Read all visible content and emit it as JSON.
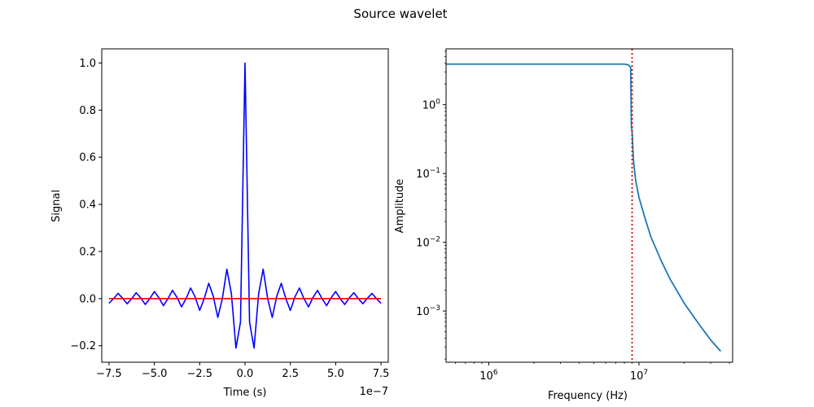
{
  "figure": {
    "title": "Source wavelet"
  },
  "chart_data": [
    {
      "type": "line",
      "title": "",
      "xlabel": "Time (s)",
      "ylabel": "Signal",
      "x_offset_label": "1e−7",
      "xlim": [
        -7.9,
        7.9
      ],
      "ylim": [
        -0.27,
        1.06
      ],
      "x_ticks": [
        -7.5,
        -5.0,
        -2.5,
        0.0,
        2.5,
        5.0,
        7.5
      ],
      "x_tick_labels": [
        "−7.5",
        "−5.0",
        "−2.5",
        "0.0",
        "2.5",
        "5.0",
        "7.5"
      ],
      "y_ticks": [
        -0.2,
        0.0,
        0.2,
        0.4,
        0.6,
        0.8,
        1.0
      ],
      "y_tick_labels": [
        "−0.2",
        "0.0",
        "0.2",
        "0.4",
        "0.6",
        "0.8",
        "1.0"
      ],
      "grid": false,
      "series": [
        {
          "color": "#0000ff",
          "x": [
            -7.5,
            -7.25,
            -7.0,
            -6.75,
            -6.5,
            -6.25,
            -6.0,
            -5.75,
            -5.5,
            -5.25,
            -5.0,
            -4.75,
            -4.5,
            -4.25,
            -4.0,
            -3.75,
            -3.5,
            -3.25,
            -3.0,
            -2.75,
            -2.5,
            -2.25,
            -2.0,
            -1.75,
            -1.5,
            -1.25,
            -1.0,
            -0.75,
            -0.5,
            -0.25,
            0.0,
            0.25,
            0.5,
            0.75,
            1.0,
            1.25,
            1.5,
            1.75,
            2.0,
            2.25,
            2.5,
            2.75,
            3.0,
            3.25,
            3.5,
            3.75,
            4.0,
            4.25,
            4.5,
            4.75,
            5.0,
            5.25,
            5.5,
            5.75,
            6.0,
            6.25,
            6.5,
            6.75,
            7.0,
            7.25,
            7.5
          ],
          "y": [
            -0.02,
            0.0,
            0.022,
            0.002,
            -0.022,
            0.0,
            0.025,
            0.003,
            -0.025,
            0.0,
            0.03,
            0.004,
            -0.03,
            0.0,
            0.035,
            0.005,
            -0.035,
            0.0,
            0.045,
            0.007,
            -0.05,
            0.0,
            0.065,
            0.01,
            -0.08,
            0.0,
            0.125,
            0.02,
            -0.21,
            -0.1,
            1.0,
            -0.1,
            -0.21,
            0.02,
            0.125,
            0.0,
            -0.08,
            0.01,
            0.065,
            0.0,
            -0.05,
            0.007,
            0.045,
            0.0,
            -0.035,
            0.005,
            0.035,
            0.0,
            -0.03,
            0.004,
            0.03,
            0.0,
            -0.025,
            0.003,
            0.025,
            0.0,
            -0.022,
            0.002,
            0.022,
            0.0,
            -0.02
          ]
        },
        {
          "color": "#ff0000",
          "x": [
            -7.5,
            7.5
          ],
          "y": [
            0.0,
            0.0
          ]
        }
      ]
    },
    {
      "type": "line",
      "title": "",
      "xlabel": "Frequency (Hz)",
      "ylabel": "Amplitude",
      "x_scale": "log",
      "y_scale": "log",
      "xlim": [
        520000,
        42000000
      ],
      "ylim": [
        0.00018,
        6.5
      ],
      "x_ticks": [
        1000000,
        10000000
      ],
      "x_tick_labels": [
        {
          "base": "10",
          "exp": "6"
        },
        {
          "base": "10",
          "exp": "7"
        }
      ],
      "y_ticks": [
        0.001,
        0.01,
        0.1,
        1
      ],
      "y_tick_labels": [
        {
          "base": "10",
          "exp": "−3"
        },
        {
          "base": "10",
          "exp": "−2"
        },
        {
          "base": "10",
          "exp": "−1"
        },
        {
          "base": "10",
          "exp": "0"
        }
      ],
      "grid": false,
      "vline": {
        "x": 9000000,
        "color": "#cc0000",
        "style": "dotted"
      },
      "series": [
        {
          "color": "#1f77b4",
          "x": [
            520000,
            1000000,
            2000000,
            4000000,
            7000000,
            8000000,
            8500000,
            8800000,
            8900000,
            9000000,
            9200000,
            9500000,
            10000000,
            11000000,
            12000000,
            14000000,
            16000000,
            20000000,
            25000000,
            30000000,
            35000000
          ],
          "y": [
            3.9,
            3.9,
            3.9,
            3.9,
            3.9,
            3.9,
            3.8,
            3.5,
            0.5,
            0.4,
            0.15,
            0.08,
            0.045,
            0.022,
            0.012,
            0.0055,
            0.003,
            0.0013,
            0.00065,
            0.00038,
            0.00026
          ]
        }
      ]
    }
  ]
}
